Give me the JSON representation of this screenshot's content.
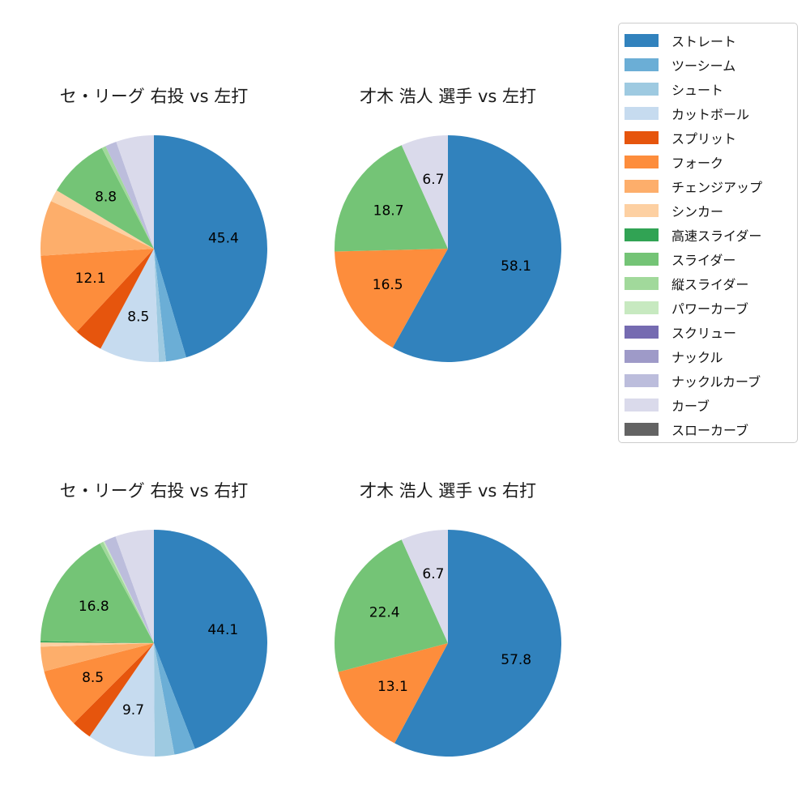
{
  "page": {
    "background_color": "#ffffff",
    "text_color": "#1a1a1a"
  },
  "legend": {
    "position": "right",
    "items": [
      {
        "key": "straight",
        "label": "ストレート",
        "color": "#3182bd"
      },
      {
        "key": "two-seam",
        "label": "ツーシーム",
        "color": "#6baed6"
      },
      {
        "key": "shoot",
        "label": "シュート",
        "color": "#9ecae1"
      },
      {
        "key": "cut-ball",
        "label": "カットボール",
        "color": "#c6dbef"
      },
      {
        "key": "split",
        "label": "スプリット",
        "color": "#e6550d"
      },
      {
        "key": "fork",
        "label": "フォーク",
        "color": "#fd8d3c"
      },
      {
        "key": "changeup",
        "label": "チェンジアップ",
        "color": "#fdae6b"
      },
      {
        "key": "sinker",
        "label": "シンカー",
        "color": "#fdd0a2"
      },
      {
        "key": "fast-slider",
        "label": "高速スライダー",
        "color": "#31a354"
      },
      {
        "key": "slider",
        "label": "スライダー",
        "color": "#74c476"
      },
      {
        "key": "vertical-slider",
        "label": "縦スライダー",
        "color": "#a1d99b"
      },
      {
        "key": "power-curve",
        "label": "パワーカーブ",
        "color": "#c7e9c0"
      },
      {
        "key": "screw",
        "label": "スクリュー",
        "color": "#756bb1"
      },
      {
        "key": "knuckle",
        "label": "ナックル",
        "color": "#9e9ac8"
      },
      {
        "key": "knuckle-curve",
        "label": "ナックルカーブ",
        "color": "#bcbddc"
      },
      {
        "key": "curve",
        "label": "カーブ",
        "color": "#dadaeb"
      },
      {
        "key": "slow-curve",
        "label": "スローカーブ",
        "color": "#636363"
      }
    ]
  },
  "chart_data": [
    {
      "type": "pie",
      "title": "セ・リーグ 右投 vs 左打",
      "start_angle": "top",
      "direction": "clockwise",
      "labeled_values": {
        "ストレート": 45.4,
        "カットボール": 8.5,
        "フォーク": 12.1,
        "スライダー": 8.8
      },
      "slices": [
        {
          "pitch": "ストレート",
          "value": 45.4,
          "show_label": true
        },
        {
          "pitch": "ツーシーム",
          "value": 2.9,
          "show_label": false
        },
        {
          "pitch": "シュート",
          "value": 1.0,
          "show_label": false
        },
        {
          "pitch": "カットボール",
          "value": 8.5,
          "show_label": true
        },
        {
          "pitch": "スプリット",
          "value": 4.1,
          "show_label": false
        },
        {
          "pitch": "フォーク",
          "value": 12.1,
          "show_label": true
        },
        {
          "pitch": "チェンジアップ",
          "value": 7.9,
          "show_label": false
        },
        {
          "pitch": "シンカー",
          "value": 1.7,
          "show_label": false
        },
        {
          "pitch": "スライダー",
          "value": 8.8,
          "show_label": true
        },
        {
          "pitch": "縦スライダー",
          "value": 0.6,
          "show_label": false
        },
        {
          "pitch": "ナックルカーブ",
          "value": 1.6,
          "show_label": false
        },
        {
          "pitch": "カーブ",
          "value": 5.4,
          "show_label": false
        }
      ]
    },
    {
      "type": "pie",
      "title": "才木 浩人 選手 vs 左打",
      "start_angle": "top",
      "direction": "clockwise",
      "labeled_values": {
        "ストレート": 58.1,
        "フォーク": 16.5,
        "スライダー": 18.7,
        "カーブ": 6.7
      },
      "slices": [
        {
          "pitch": "ストレート",
          "value": 58.1,
          "show_label": true
        },
        {
          "pitch": "フォーク",
          "value": 16.5,
          "show_label": true
        },
        {
          "pitch": "スライダー",
          "value": 18.7,
          "show_label": true
        },
        {
          "pitch": "カーブ",
          "value": 6.7,
          "show_label": true
        }
      ]
    },
    {
      "type": "pie",
      "title": "セ・リーグ 右投 vs 右打",
      "start_angle": "top",
      "direction": "clockwise",
      "labeled_values": {
        "ストレート": 44.1,
        "カットボール": 9.7,
        "フォーク": 8.5,
        "スライダー": 16.8
      },
      "slices": [
        {
          "pitch": "ストレート",
          "value": 44.1,
          "show_label": true
        },
        {
          "pitch": "ツーシーム",
          "value": 3.0,
          "show_label": false
        },
        {
          "pitch": "シュート",
          "value": 2.8,
          "show_label": false
        },
        {
          "pitch": "カットボール",
          "value": 9.7,
          "show_label": true
        },
        {
          "pitch": "スプリット",
          "value": 2.9,
          "show_label": false
        },
        {
          "pitch": "フォーク",
          "value": 8.5,
          "show_label": true
        },
        {
          "pitch": "チェンジアップ",
          "value": 3.5,
          "show_label": false
        },
        {
          "pitch": "シンカー",
          "value": 0.6,
          "show_label": false
        },
        {
          "pitch": "高速スライダー",
          "value": 0.2,
          "show_label": false
        },
        {
          "pitch": "スライダー",
          "value": 16.8,
          "show_label": true
        },
        {
          "pitch": "縦スライダー",
          "value": 0.5,
          "show_label": false
        },
        {
          "pitch": "パワーカーブ",
          "value": 0.2,
          "show_label": false
        },
        {
          "pitch": "ナックルカーブ",
          "value": 1.7,
          "show_label": false
        },
        {
          "pitch": "カーブ",
          "value": 5.5,
          "show_label": false
        }
      ]
    },
    {
      "type": "pie",
      "title": "才木 浩人 選手 vs 右打",
      "start_angle": "top",
      "direction": "clockwise",
      "labeled_values": {
        "ストレート": 57.8,
        "フォーク": 13.1,
        "スライダー": 22.4,
        "カーブ": 6.7
      },
      "slices": [
        {
          "pitch": "ストレート",
          "value": 57.8,
          "show_label": true
        },
        {
          "pitch": "フォーク",
          "value": 13.1,
          "show_label": true
        },
        {
          "pitch": "スライダー",
          "value": 22.4,
          "show_label": true
        },
        {
          "pitch": "カーブ",
          "value": 6.7,
          "show_label": true
        }
      ]
    }
  ]
}
